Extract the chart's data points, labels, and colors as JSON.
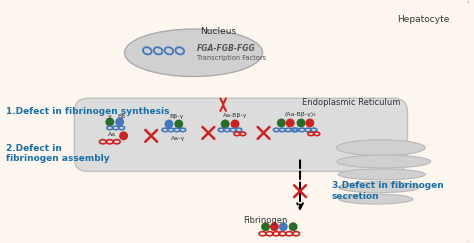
{
  "bg_color": "#fdf6ee",
  "cell_border_color": "#cccccc",
  "nucleus_color": "#c8c8c8",
  "er_color": "#d8d8d8",
  "blue_text": "#1a6fa8",
  "dark_text": "#333333",
  "red": "#cc2222",
  "green_dark": "#2a6b2a",
  "blue_medium": "#4477bb",
  "title_hepatocyte": "Hepatocyte",
  "title_nucleus": "Nucleus",
  "title_er": "Endoplasmic Reticulum",
  "label1": "1.Defect in fibrinogen synthesis",
  "label2_line1": "2.Defect in",
  "label2_line2": "fibrinogen assembly",
  "label3_line1": "3.Defect in fibrinogen",
  "label3_line2": "secretion",
  "label_fibrinogen": "Fibrinogen",
  "fga_label": "FGA-FGB-FGG",
  "tf_label": "Transcription Factors",
  "figure_width": 4.74,
  "figure_height": 2.43,
  "dpi": 100
}
